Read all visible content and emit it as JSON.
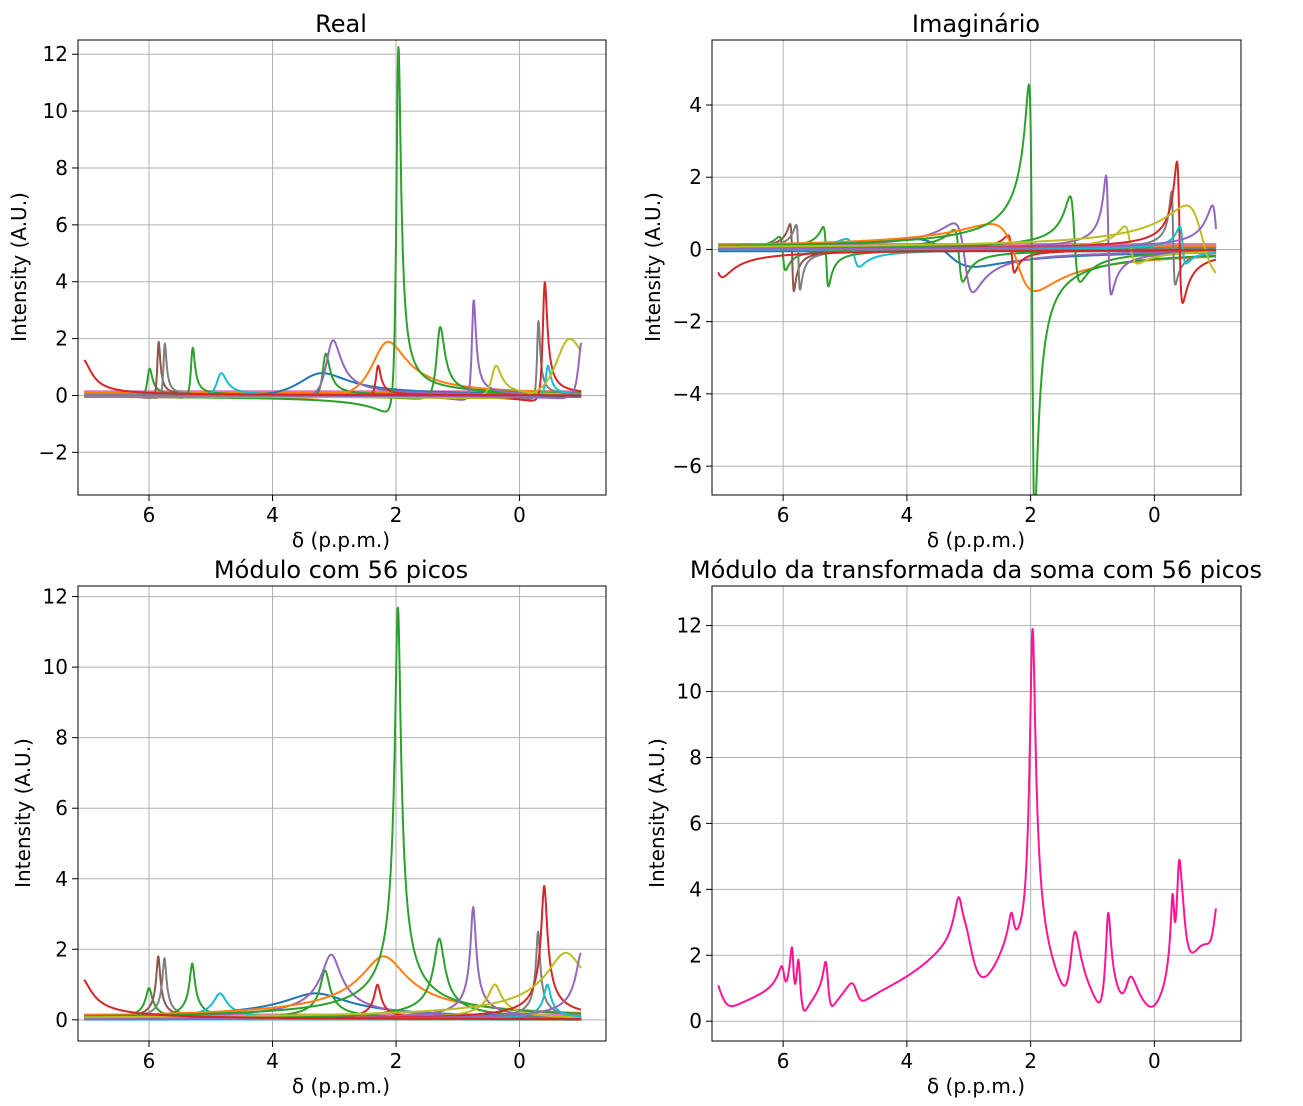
{
  "chart_data": [
    {
      "type": "line",
      "title": "Real",
      "xlabel": "δ (p.p.m.)",
      "ylabel": "Intensity (A.U.)",
      "xlim": [
        7.15,
        -1.4
      ],
      "ylim": [
        -3.5,
        12.5
      ],
      "xticks": [
        6,
        4,
        2,
        0
      ],
      "yticks": [
        -2,
        0,
        2,
        4,
        6,
        8,
        10,
        12
      ],
      "grid": true,
      "kind": "real",
      "peaks": [
        {
          "center": 6.0,
          "amplitude": 0.9,
          "width": 0.05,
          "color": "#2ca02c"
        },
        {
          "center": 5.85,
          "amplitude": 1.8,
          "width": 0.03,
          "color": "#8c564b"
        },
        {
          "center": 5.75,
          "amplitude": 1.75,
          "width": 0.03,
          "color": "#7f7f7f"
        },
        {
          "center": 5.3,
          "amplitude": 1.6,
          "width": 0.04,
          "color": "#2ca02c"
        },
        {
          "center": 4.85,
          "amplitude": 0.75,
          "width": 0.1,
          "color": "#17becf"
        },
        {
          "center": 3.3,
          "amplitude": 0.75,
          "width": 0.5,
          "color": "#1f77b4"
        },
        {
          "center": 3.15,
          "amplitude": 1.4,
          "width": 0.07,
          "color": "#2ca02c"
        },
        {
          "center": 3.05,
          "amplitude": 1.85,
          "width": 0.15,
          "color": "#9467bd"
        },
        {
          "center": 2.3,
          "amplitude": 1.0,
          "width": 0.05,
          "color": "#d62728"
        },
        {
          "center": 2.2,
          "amplitude": 1.8,
          "width": 0.35,
          "color": "#ff7f0e"
        },
        {
          "center": 1.97,
          "amplitude": 11.7,
          "width": 0.045,
          "color": "#2ca02c"
        },
        {
          "center": 1.3,
          "amplitude": 2.3,
          "width": 0.08,
          "color": "#2ca02c"
        },
        {
          "center": 0.75,
          "amplitude": 3.2,
          "width": 0.04,
          "color": "#9467bd"
        },
        {
          "center": 0.4,
          "amplitude": 1.0,
          "width": 0.1,
          "color": "#bcbd22"
        },
        {
          "center": -0.3,
          "amplitude": 2.5,
          "width": 0.03,
          "color": "#7f7f7f"
        },
        {
          "center": -0.4,
          "amplitude": 3.8,
          "width": 0.045,
          "color": "#d62728"
        },
        {
          "center": -0.45,
          "amplitude": 1.0,
          "width": 0.05,
          "color": "#17becf"
        },
        {
          "center": -0.75,
          "amplitude": 1.9,
          "width": 0.3,
          "color": "#bcbd22"
        },
        {
          "center": -1.0,
          "amplitude": 1.9,
          "width": 0.08,
          "color": "#9467bd"
        },
        {
          "center": 7.1,
          "amplitude": 1.2,
          "width": 0.15,
          "color": "#d62728"
        }
      ],
      "offsets": [
        {
          "value": 0.15,
          "color": "#e377c2"
        },
        {
          "value": 0.05,
          "color": "#7f7f7f"
        },
        {
          "value": -0.05,
          "color": "#1f77b4"
        },
        {
          "value": 0.1,
          "color": "#ff7f0e"
        }
      ]
    },
    {
      "type": "line",
      "title": "Imaginário",
      "xlabel": "δ (p.p.m.)",
      "ylabel": "Intensity (A.U.)",
      "xlim": [
        7.15,
        -1.4
      ],
      "ylim": [
        -6.8,
        5.8
      ],
      "xticks": [
        6,
        4,
        2,
        0
      ],
      "yticks": [
        -6,
        -4,
        -2,
        0,
        2,
        4
      ],
      "grid": true,
      "kind": "imag"
    },
    {
      "type": "line",
      "title": "Módulo com 56 picos",
      "xlabel": "δ (p.p.m.)",
      "ylabel": "Intensity (A.U.)",
      "xlim": [
        7.15,
        -1.4
      ],
      "ylim": [
        -0.6,
        12.3
      ],
      "xticks": [
        6,
        4,
        2,
        0
      ],
      "yticks": [
        0,
        2,
        4,
        6,
        8,
        10,
        12
      ],
      "grid": true,
      "kind": "abs"
    },
    {
      "type": "line",
      "title": "Módulo da transformada da soma com 56 picos",
      "xlabel": "δ (p.p.m.)",
      "ylabel": "Intensity (A.U.)",
      "xlim": [
        7.15,
        -1.4
      ],
      "ylim": [
        -0.6,
        13.2
      ],
      "xticks": [
        6,
        4,
        2,
        0
      ],
      "yticks": [
        0,
        2,
        4,
        6,
        8,
        10,
        12
      ],
      "grid": true,
      "kind": "sum",
      "color": "#ff1493"
    }
  ]
}
